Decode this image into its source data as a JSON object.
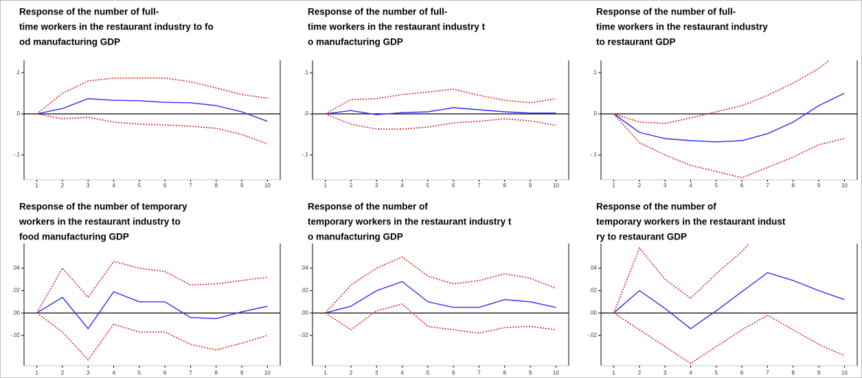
{
  "chart_data": [
    {
      "type": "line",
      "title_lines": [
        "Response of the number of full-",
        "time workers in the restaurant industry to fo",
        "od manufacturing   GDP"
      ],
      "categories": [
        "1",
        "2",
        "3",
        "4",
        "5",
        "6",
        "7",
        "8",
        "9",
        "10"
      ],
      "ylim": [
        -0.16,
        0.13
      ],
      "yticks": [
        {
          "value": 0.1,
          "label": ".1"
        },
        {
          "value": 0,
          "label": ".0"
        },
        {
          "value": -0.1,
          "label": "-.1"
        }
      ],
      "zero_line": true,
      "series": [
        {
          "color": "#2a2aff",
          "dashed": false,
          "values": [
            0,
            0.013,
            0.037,
            0.033,
            0.032,
            0.028,
            0.027,
            0.02,
            0.005,
            -0.018
          ]
        },
        {
          "color": "#e02020",
          "dashed": true,
          "values": [
            0,
            0.05,
            0.08,
            0.087,
            0.087,
            0.087,
            0.078,
            0.063,
            0.047,
            0.038
          ]
        },
        {
          "color": "#e02020",
          "dashed": true,
          "values": [
            0,
            -0.012,
            -0.008,
            -0.02,
            -0.025,
            -0.027,
            -0.03,
            -0.035,
            -0.05,
            -0.073
          ]
        }
      ]
    },
    {
      "type": "line",
      "title_lines": [
        "Response of the number of full-",
        "time workers in the restaurant industry  t",
        "o manufacturing   GDP"
      ],
      "categories": [
        "1",
        "2",
        "3",
        "4",
        "5",
        "6",
        "7",
        "8",
        "9",
        "10"
      ],
      "ylim": [
        -0.16,
        0.13
      ],
      "yticks": [
        {
          "value": 0.1,
          "label": ".1"
        },
        {
          "value": 0,
          "label": ".0"
        },
        {
          "value": -0.1,
          "label": "-.1"
        }
      ],
      "zero_line": true,
      "series": [
        {
          "color": "#2a2aff",
          "dashed": false,
          "values": [
            0,
            0.008,
            -0.002,
            0.003,
            0.005,
            0.015,
            0.01,
            0.005,
            0.002,
            0.002
          ]
        },
        {
          "color": "#e02020",
          "dashed": true,
          "values": [
            0,
            0.035,
            0.037,
            0.047,
            0.053,
            0.06,
            0.045,
            0.033,
            0.027,
            0.037
          ]
        },
        {
          "color": "#e02020",
          "dashed": true,
          "values": [
            0,
            -0.025,
            -0.037,
            -0.037,
            -0.032,
            -0.022,
            -0.018,
            -0.012,
            -0.017,
            -0.028
          ]
        }
      ]
    },
    {
      "type": "line",
      "title_lines": [
        "Response of the number of full-",
        "time workers in the restaurant industry",
        " to restaurant  GDP"
      ],
      "categories": [
        "1",
        "2",
        "3",
        "4",
        "5",
        "6",
        "7",
        "8",
        "9",
        "10"
      ],
      "ylim": [
        -0.16,
        0.13
      ],
      "yticks": [
        {
          "value": 0.1,
          "label": ".1"
        },
        {
          "value": 0,
          "label": ".0"
        },
        {
          "value": -0.1,
          "label": "-.1"
        }
      ],
      "zero_line": true,
      "series": [
        {
          "color": "#2a2aff",
          "dashed": false,
          "values": [
            0,
            -0.045,
            -0.06,
            -0.065,
            -0.068,
            -0.065,
            -0.048,
            -0.02,
            0.02,
            0.05
          ]
        },
        {
          "color": "#e02020",
          "dashed": true,
          "values": [
            0,
            -0.02,
            -0.023,
            -0.01,
            0.005,
            0.02,
            0.045,
            0.075,
            0.11,
            0.16
          ]
        },
        {
          "color": "#e02020",
          "dashed": true,
          "values": [
            0,
            -0.07,
            -0.1,
            -0.125,
            -0.14,
            -0.155,
            -0.13,
            -0.105,
            -0.075,
            -0.06
          ]
        }
      ]
    },
    {
      "type": "line",
      "title_lines": [
        "Response of the number of temporary",
        " workers in the restaurant industry to",
        "food manufacturing   GDP"
      ],
      "categories": [
        "1",
        "2",
        "3",
        "4",
        "5",
        "6",
        "7",
        "8",
        "9",
        "10"
      ],
      "ylim": [
        -0.047,
        0.062
      ],
      "yticks": [
        {
          "value": 0.04,
          "label": ".04"
        },
        {
          "value": 0.02,
          "label": ".02"
        },
        {
          "value": 0,
          "label": ".00"
        },
        {
          "value": -0.02,
          "label": "-.02"
        }
      ],
      "zero_line": true,
      "series": [
        {
          "color": "#2a2aff",
          "dashed": false,
          "values": [
            0,
            0.014,
            -0.014,
            0.019,
            0.01,
            0.01,
            -0.004,
            -0.005,
            0.001,
            0.006
          ]
        },
        {
          "color": "#e02020",
          "dashed": true,
          "values": [
            0,
            0.04,
            0.014,
            0.046,
            0.04,
            0.037,
            0.025,
            0.026,
            0.029,
            0.032
          ]
        },
        {
          "color": "#e02020",
          "dashed": true,
          "values": [
            0,
            -0.017,
            -0.042,
            -0.01,
            -0.017,
            -0.017,
            -0.028,
            -0.033,
            -0.027,
            -0.02
          ]
        }
      ]
    },
    {
      "type": "line",
      "title_lines": [
        "Response of the number of",
        "temporary workers in the restaurant industry t",
        "o manufacturing   GDP"
      ],
      "categories": [
        "1",
        "2",
        "3",
        "4",
        "5",
        "6",
        "7",
        "8",
        "9",
        "10"
      ],
      "ylim": [
        -0.047,
        0.062
      ],
      "yticks": [
        {
          "value": 0.04,
          "label": ".04"
        },
        {
          "value": 0.02,
          "label": ".02"
        },
        {
          "value": 0,
          "label": ".00"
        },
        {
          "value": -0.02,
          "label": "-.02"
        }
      ],
      "zero_line": true,
      "series": [
        {
          "color": "#2a2aff",
          "dashed": false,
          "values": [
            0,
            0.006,
            0.02,
            0.028,
            0.01,
            0.005,
            0.005,
            0.012,
            0.01,
            0.005
          ]
        },
        {
          "color": "#e02020",
          "dashed": true,
          "values": [
            0,
            0.025,
            0.04,
            0.05,
            0.033,
            0.026,
            0.029,
            0.035,
            0.031,
            0.022
          ]
        },
        {
          "color": "#e02020",
          "dashed": true,
          "values": [
            0,
            -0.015,
            0.002,
            0.008,
            -0.012,
            -0.015,
            -0.018,
            -0.013,
            -0.012,
            -0.015
          ]
        }
      ]
    },
    {
      "type": "line",
      "title_lines": [
        "Response of the number of",
        "temporary workers in the restaurant indust",
        "ry to restaurant  GDP"
      ],
      "categories": [
        "1",
        "2",
        "3",
        "4",
        "5",
        "6",
        "7",
        "8",
        "9",
        "10"
      ],
      "ylim": [
        -0.047,
        0.062
      ],
      "yticks": [
        {
          "value": 0.04,
          "label": ".04"
        },
        {
          "value": 0.02,
          "label": ".02"
        },
        {
          "value": 0,
          "label": ".00"
        },
        {
          "value": -0.02,
          "label": "-.02"
        }
      ],
      "zero_line": true,
      "series": [
        {
          "color": "#2a2aff",
          "dashed": false,
          "values": [
            0,
            0.02,
            0.004,
            -0.014,
            0.002,
            0.019,
            0.036,
            0.029,
            0.02,
            0.012
          ]
        },
        {
          "color": "#e02020",
          "dashed": true,
          "values": [
            0,
            0.058,
            0.03,
            0.013,
            0.035,
            0.055,
            0.08,
            null,
            null,
            null
          ]
        },
        {
          "color": "#e02020",
          "dashed": true,
          "values": [
            0,
            -0.015,
            -0.03,
            -0.045,
            -0.03,
            -0.015,
            -0.002,
            -0.015,
            -0.028,
            -0.038
          ]
        }
      ]
    }
  ]
}
